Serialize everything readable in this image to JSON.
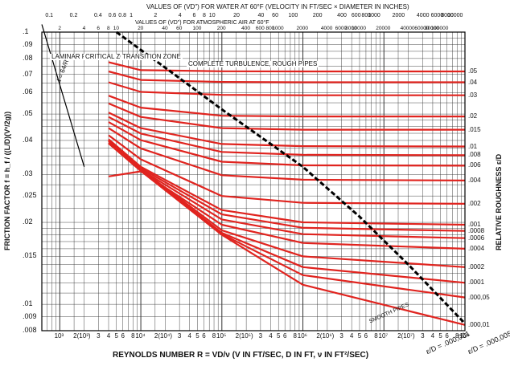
{
  "chart_data": {
    "type": "line",
    "title": "",
    "top_axis": {
      "line1": "VALUES OF (VD\") FOR WATER AT 60°F (VELOCITY IN FT/SEC × DIAMETER IN INCHES)",
      "line2": "VALUES OF (VD\") FOR ATMOSPHERIC AIR AT 60°F",
      "ticks_water": [
        "0.1",
        "0.2",
        "0.4",
        "0.6",
        "0.8",
        "1",
        "2",
        "4",
        "6",
        "8",
        "10",
        "20",
        "40",
        "60",
        "100",
        "200",
        "400",
        "600",
        "800",
        "1000",
        "2000",
        "4000",
        "6000",
        "8000",
        "10000"
      ],
      "ticks_air": [
        "2",
        "4",
        "6",
        "8",
        "10",
        "20",
        "40",
        "60",
        "100",
        "200",
        "400",
        "600",
        "800",
        "1000",
        "2000",
        "4000",
        "6000",
        "8000",
        "10000",
        "20000",
        "40000",
        "60000",
        "80000",
        "100000"
      ]
    },
    "xlabel": "REYNOLDS NUMBER R = VD/ν (V IN FT/SEC, D IN FT, ν IN FT²/SEC)",
    "ylabel": "FRICTION FACTOR f = h_f / ((L/D)(V²/2g))",
    "y2label": "RELATIVE ROUGHNESS ε/D",
    "xscale": "log",
    "yscale": "log",
    "xlim": [
      600,
      100000000
    ],
    "ylim": [
      0.008,
      0.1
    ],
    "x_ticks": [
      "10³",
      "2(10³)",
      "3",
      "4",
      "5",
      "6",
      "8",
      "10⁴",
      "2(10⁴)",
      "3",
      "4",
      "5",
      "6",
      "8",
      "10⁵",
      "2(10⁵)",
      "3",
      "4",
      "5",
      "6",
      "8",
      "10⁶",
      "2(10⁶)",
      "3",
      "4",
      "5",
      "6",
      "8",
      "10⁷",
      "2(10⁷)",
      "3",
      "4",
      "5",
      "6",
      "8",
      "10⁸"
    ],
    "y_ticks": [
      ".1",
      ".09",
      ".08",
      ".07",
      ".06",
      ".05",
      ".04",
      ".03",
      ".025",
      ".02",
      ".015",
      ".01",
      ".009",
      ".008"
    ],
    "annotations": {
      "laminar_flow": "LAMINAR FLOW",
      "critical_zone": "CRITICAL ZONE",
      "transition_zone": "TRANSITION ZONE",
      "complete_turbulence": "COMPLETE TURBULENCE, ROUGH PIPES",
      "laminar_formula": "f = 64/R",
      "smooth_pipes": "SMOOTH PIPES",
      "eps_000001": "ε/D = .000,001",
      "eps_000005": "ε/D = .000,005"
    },
    "roughness_labels": [
      ".05",
      ".04",
      ".03",
      ".02",
      ".015",
      ".01",
      ".008",
      ".006",
      ".004",
      ".002",
      ".001",
      ".0008",
      ".0006",
      ".0004",
      ".0002",
      ".0001",
      ".000,05",
      ".000,01"
    ],
    "series": [
      {
        "name": ".05",
        "x": [
          4000,
          10000,
          100000,
          1000000,
          100000000
        ],
        "y": [
          0.0775,
          0.0725,
          0.0718,
          0.0717,
          0.0717
        ]
      },
      {
        "name": ".04",
        "x": [
          4000,
          10000,
          100000,
          1000000,
          100000000
        ],
        "y": [
          0.0717,
          0.0667,
          0.0656,
          0.0654,
          0.0654
        ]
      },
      {
        "name": ".03",
        "x": [
          4000,
          10000,
          100000,
          1000000,
          100000000
        ],
        "y": [
          0.0654,
          0.0603,
          0.0588,
          0.0586,
          0.0586
        ]
      },
      {
        "name": ".02",
        "x": [
          4000,
          10000,
          100000,
          1000000,
          100000000
        ],
        "y": [
          0.0584,
          0.0528,
          0.0493,
          0.049,
          0.049
        ]
      },
      {
        "name": ".015",
        "x": [
          4000,
          10000,
          100000,
          1000000,
          100000000
        ],
        "y": [
          0.0547,
          0.0488,
          0.0444,
          0.0438,
          0.0438
        ]
      },
      {
        "name": ".01",
        "x": [
          4000,
          10000,
          100000,
          1000000,
          100000000
        ],
        "y": [
          0.0506,
          0.0444,
          0.0388,
          0.0381,
          0.038
        ]
      },
      {
        "name": ".008",
        "x": [
          4000,
          10000,
          100000,
          1000000,
          100000000
        ],
        "y": [
          0.0488,
          0.0424,
          0.0363,
          0.0354,
          0.0353
        ]
      },
      {
        "name": ".006",
        "x": [
          4000,
          10000,
          100000,
          1000000,
          100000000
        ],
        "y": [
          0.0467,
          0.0401,
          0.0334,
          0.0324,
          0.0323
        ]
      },
      {
        "name": ".004",
        "x": [
          4000,
          10000,
          100000,
          1000000,
          100000000
        ],
        "y": [
          0.0444,
          0.0374,
          0.0298,
          0.0287,
          0.0285
        ]
      },
      {
        "name": ".002",
        "x": [
          4000,
          10000,
          100000,
          1000000,
          100000000
        ],
        "y": [
          0.0418,
          0.0341,
          0.025,
          0.0236,
          0.0234
        ]
      },
      {
        "name": ".001",
        "x": [
          4000,
          10000,
          100000,
          1000000,
          100000000
        ],
        "y": [
          0.0404,
          0.032,
          0.0222,
          0.02,
          0.0196
        ]
      },
      {
        "name": ".0008",
        "x": [
          4000,
          10000,
          100000,
          1000000,
          100000000
        ],
        "y": [
          0.0401,
          0.0316,
          0.0214,
          0.0191,
          0.0186
        ]
      },
      {
        "name": ".0006",
        "x": [
          4000,
          10000,
          100000,
          1000000,
          100000000
        ],
        "y": [
          0.0398,
          0.0312,
          0.0205,
          0.0181,
          0.0175
        ]
      },
      {
        "name": ".0004",
        "x": [
          4000,
          10000,
          100000,
          1000000,
          100000000
        ],
        "y": [
          0.0295,
          0.0308,
          0.0196,
          0.0168,
          0.016
        ]
      },
      {
        "name": ".0002",
        "x": [
          4000,
          10000,
          100000,
          1000000,
          100000000
        ],
        "y": [
          0.0392,
          0.0313,
          0.0187,
          0.015,
          0.0137
        ]
      },
      {
        "name": ".0001",
        "x": [
          4000,
          10000,
          100000,
          1000000,
          100000000
        ],
        "y": [
          0.0391,
          0.031,
          0.0183,
          0.0137,
          0.012
        ]
      },
      {
        "name": ".000,05",
        "x": [
          4000,
          10000,
          100000,
          1000000,
          100000000
        ],
        "y": [
          0.039,
          0.0309,
          0.0181,
          0.0128,
          0.0106
        ]
      },
      {
        "name": ".000,01",
        "x": [
          4000,
          10000,
          100000,
          1000000,
          100000000
        ],
        "y": [
          0.0399,
          0.0309,
          0.018,
          0.0118,
          0.0084
        ]
      }
    ],
    "laminar_line": {
      "x": [
        600,
        2000
      ],
      "y": [
        0.1067,
        0.032
      ]
    },
    "rough_boundary": {
      "x": [
        5000,
        20000,
        100000,
        1000000,
        5000000,
        20000000,
        100000000
      ],
      "y": [
        0.1,
        0.074,
        0.052,
        0.032,
        0.021,
        0.014,
        0.0085
      ]
    },
    "grid": true,
    "colors": {
      "curves": "#e0241f",
      "grid": "#333333",
      "boundary": "#000000",
      "background": "#ffffff"
    }
  }
}
